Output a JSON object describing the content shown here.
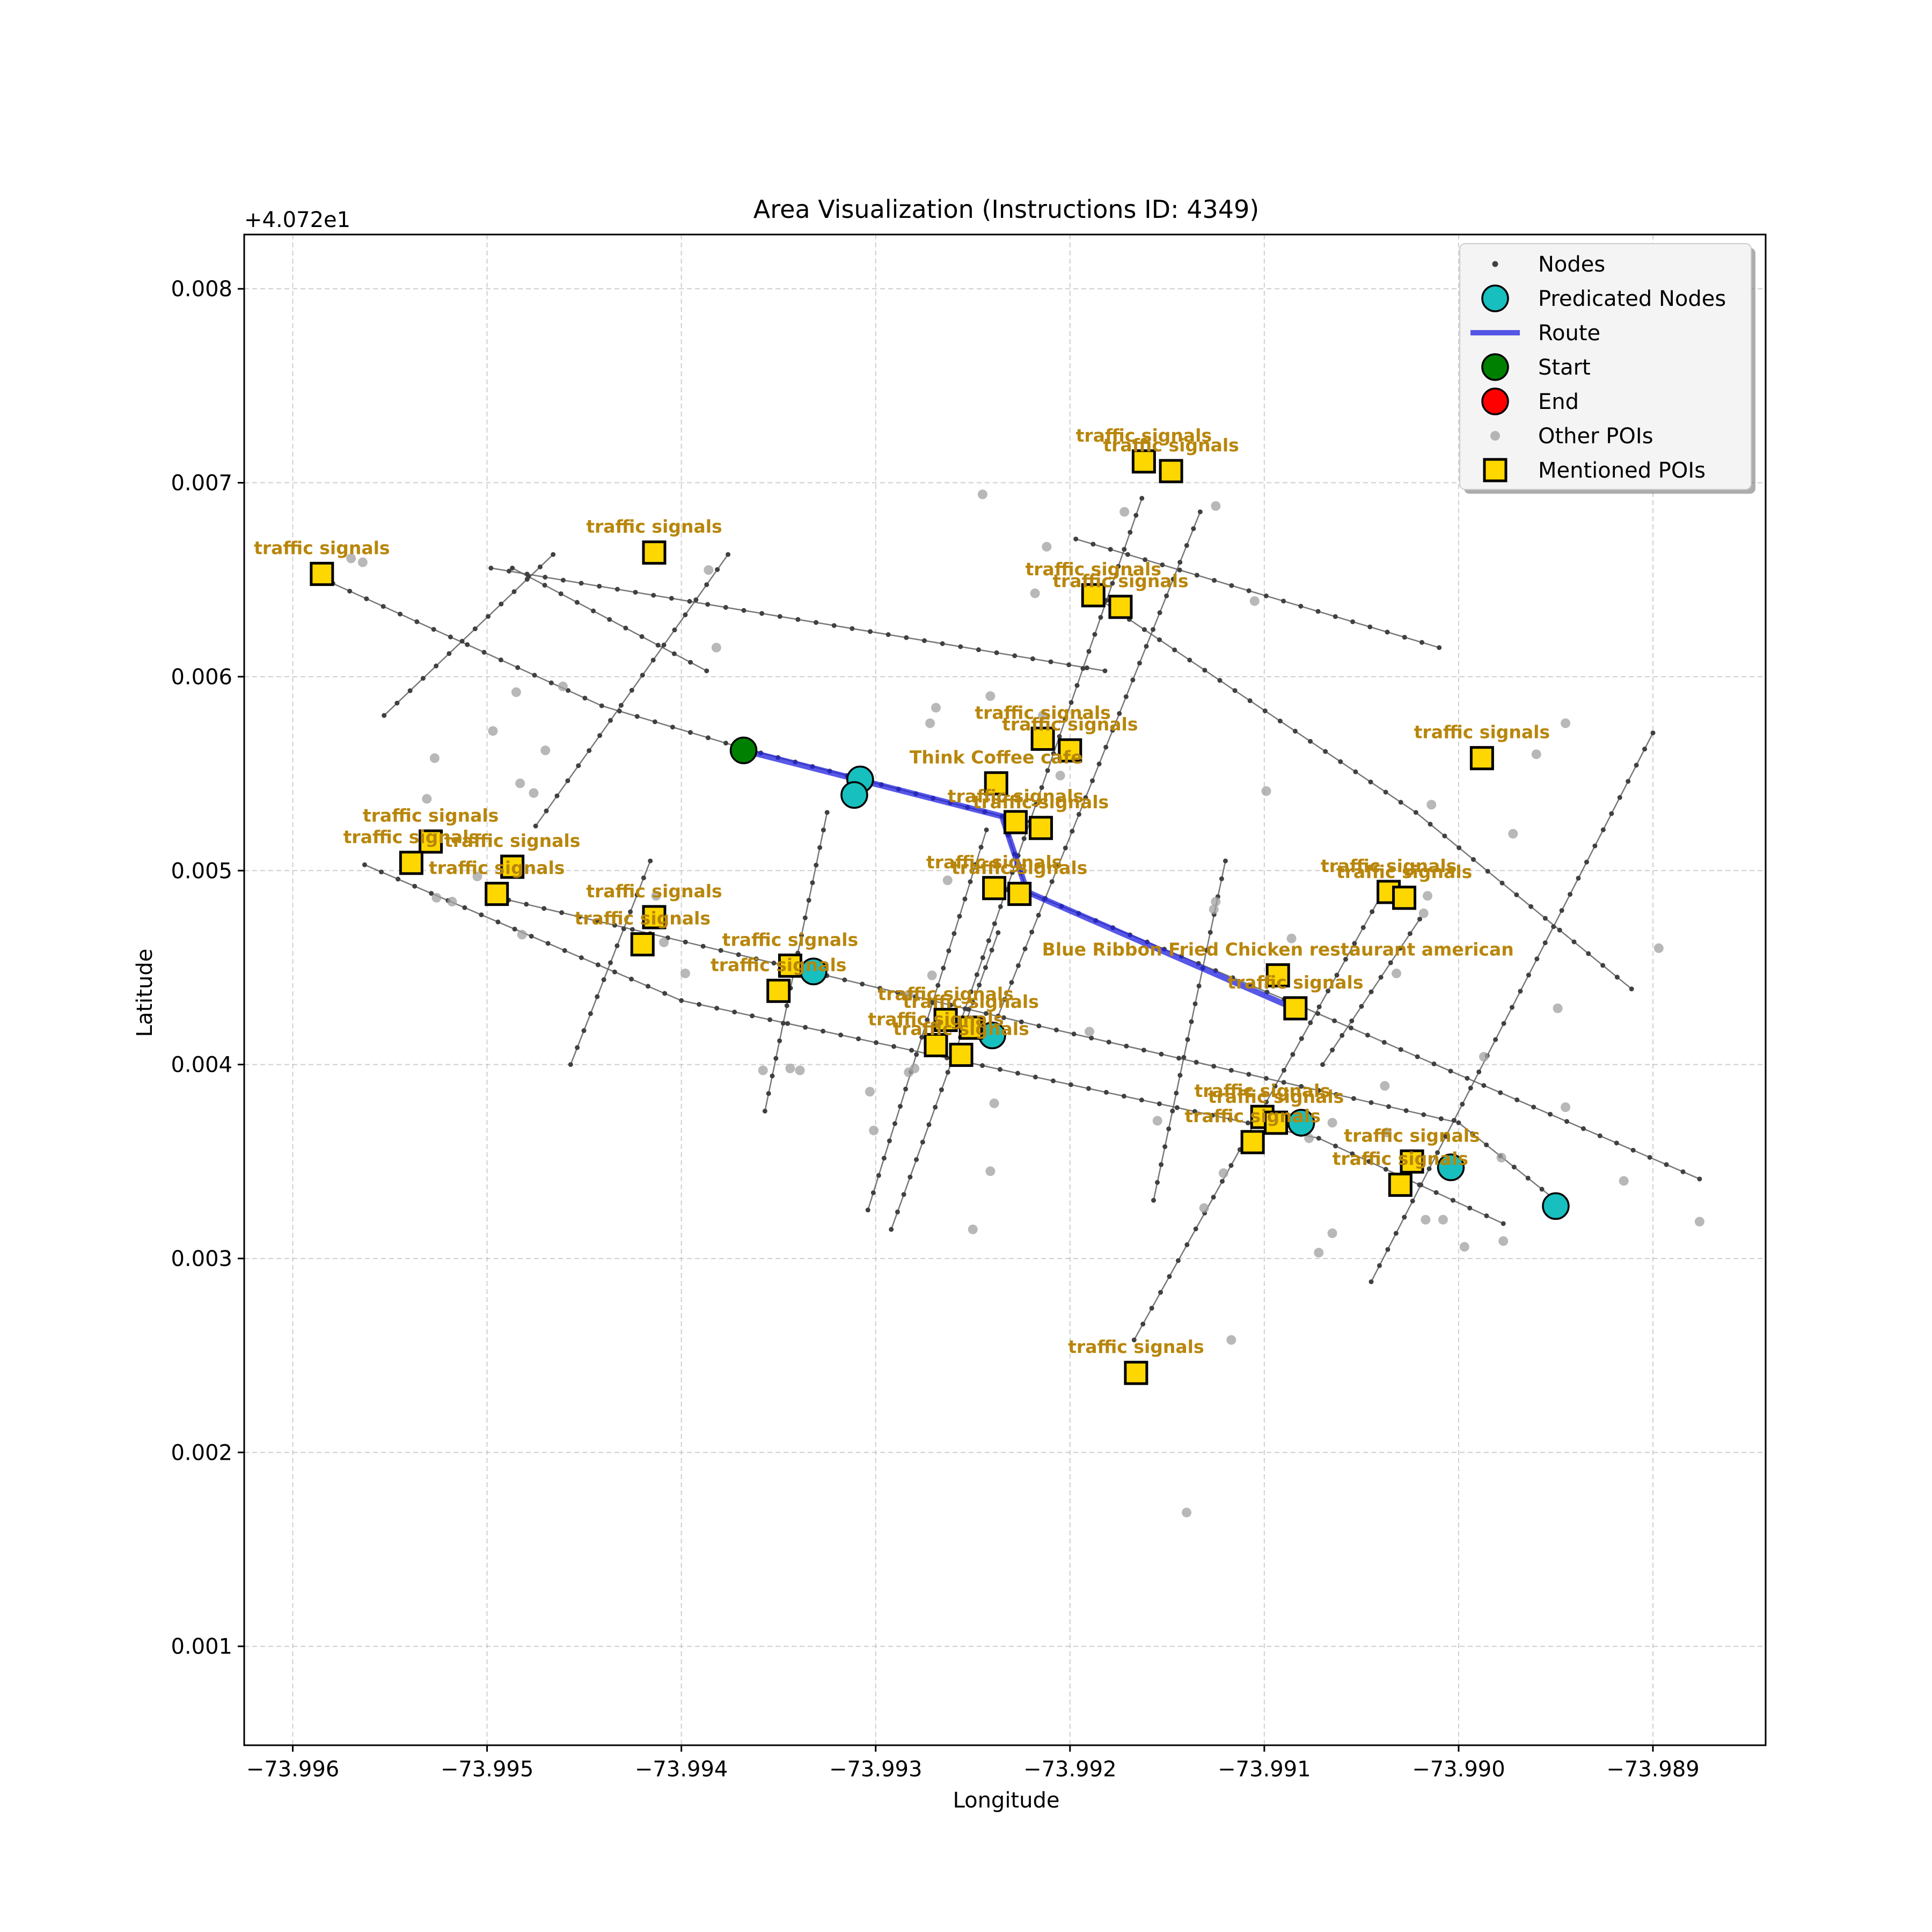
{
  "chart_data": {
    "type": "scatter",
    "title": "Area Visualization (Instructions ID: 4349)",
    "xlabel": "Longitude",
    "ylabel": "Latitude",
    "y_offset_label": "+4.072e1",
    "y_offset": 40.72,
    "xlim": [
      -73.99625,
      -73.98842
    ],
    "ylim": [
      0.00049,
      0.00828
    ],
    "x_ticks": [
      -73.996,
      -73.995,
      -73.994,
      -73.993,
      -73.992,
      -73.991,
      -73.99,
      -73.989
    ],
    "x_tick_labels": [
      "−73.996",
      "−73.995",
      "−73.994",
      "−73.993",
      "−73.992",
      "−73.991",
      "−73.990",
      "−73.989"
    ],
    "y_ticks": [
      0.001,
      0.002,
      0.003,
      0.004,
      0.005,
      0.006,
      0.007,
      0.008
    ],
    "y_tick_labels": [
      "0.001",
      "0.002",
      "0.003",
      "0.004",
      "0.005",
      "0.006",
      "0.007",
      "0.008"
    ],
    "grid": true,
    "legend_position": "upper-right",
    "legend": [
      {
        "label": "Nodes",
        "kind": "node"
      },
      {
        "label": "Predicated Nodes",
        "kind": "predicated"
      },
      {
        "label": "Route",
        "kind": "route"
      },
      {
        "label": "Start",
        "kind": "start"
      },
      {
        "label": "End",
        "kind": "end"
      },
      {
        "label": "Other POIs",
        "kind": "other"
      },
      {
        "label": "Mentioned POIs",
        "kind": "mentioned"
      }
    ],
    "colors": {
      "node": "#404040",
      "edge": "#555555",
      "predicated": "#17bfbf",
      "route": "#2020e0",
      "start": "#008000",
      "end": "#ff0000",
      "other_poi": "#a0a0a0",
      "mentioned_fill": "#ffd700",
      "mentioned_label": "#b8860b"
    },
    "streets": [
      [
        [
          -73.99588,
          0.00652
        ],
        [
          -73.99441,
          0.00585
        ],
        [
          -73.99368,
          0.00563
        ]
      ],
      [
        [
          -73.99368,
          0.00563
        ],
        [
          -73.99235,
          0.00528
        ]
      ],
      [
        [
          -73.99235,
          0.00528
        ],
        [
          -73.99222,
          0.00489
        ],
        [
          -73.99081,
          0.0043
        ],
        [
          -73.98876,
          0.00341
        ]
      ],
      [
        [
          -73.99498,
          0.00656
        ],
        [
          -73.99182,
          0.00603
        ]
      ],
      [
        [
          -73.99487,
          0.00656
        ],
        [
          -73.99387,
          0.00603
        ]
      ],
      [
        [
          -73.99185,
          0.0064
        ],
        [
          -73.99022,
          0.0053
        ],
        [
          -73.98911,
          0.00439
        ]
      ],
      [
        [
          -73.99197,
          0.00671
        ],
        [
          -73.9901,
          0.00615
        ]
      ],
      [
        [
          -73.99563,
          0.00503
        ],
        [
          -73.994,
          0.00433
        ],
        [
          -73.99072,
          0.00362
        ],
        [
          -73.98977,
          0.00318
        ]
      ],
      [
        [
          -73.99498,
          0.00487
        ],
        [
          -73.99225,
          0.00422
        ],
        [
          -73.99,
          0.0037
        ],
        [
          -73.9895,
          0.0033
        ]
      ],
      [
        [
          -73.99553,
          0.0058
        ],
        [
          -73.99466,
          0.00663
        ]
      ],
      [
        [
          -73.99475,
          0.00523
        ],
        [
          -73.99376,
          0.00663
        ]
      ],
      [
        [
          -73.99457,
          0.004
        ],
        [
          -73.99416,
          0.00505
        ]
      ],
      [
        [
          -73.99357,
          0.00376
        ],
        [
          -73.99325,
          0.0053
        ]
      ],
      [
        [
          -73.99304,
          0.00325
        ],
        [
          -73.99243,
          0.00521
        ]
      ],
      [
        [
          -73.99292,
          0.00315
        ],
        [
          -73.99237,
          0.00468
        ]
      ],
      [
        [
          -73.99257,
          0.0042
        ],
        [
          -73.99163,
          0.00692
        ]
      ],
      [
        [
          -73.99237,
          0.00425
        ],
        [
          -73.99133,
          0.00685
        ]
      ],
      [
        [
          -73.99167,
          0.00258
        ],
        [
          -73.9904,
          0.00487
        ]
      ],
      [
        [
          -73.99157,
          0.0033
        ],
        [
          -73.9912,
          0.00505
        ]
      ],
      [
        [
          -73.99045,
          0.00288
        ],
        [
          -73.989,
          0.00571
        ]
      ],
      [
        [
          -73.9907,
          0.004
        ],
        [
          -73.9902,
          0.00475
        ]
      ]
    ],
    "predicated_nodes": [
      [
        -73.99308,
        0.00547
      ],
      [
        -73.99311,
        0.00539
      ],
      [
        -73.99332,
        0.00448
      ],
      [
        -73.9924,
        0.00415
      ],
      [
        -73.99081,
        0.0037
      ],
      [
        -73.99004,
        0.00347
      ],
      [
        -73.9895,
        0.00327
      ]
    ],
    "route": [
      [
        -73.99368,
        0.00562
      ],
      [
        -73.99235,
        0.00528
      ],
      [
        -73.99222,
        0.00489
      ],
      [
        -73.99087,
        0.0043
      ]
    ],
    "start": [
      -73.99368,
      0.00562
    ],
    "other_pois": [
      [
        -73.9957,
        0.00661
      ],
      [
        -73.99564,
        0.00659
      ],
      [
        -73.99497,
        0.00572
      ],
      [
        -73.99485,
        0.00592
      ],
      [
        -73.9947,
        0.00562
      ],
      [
        -73.99461,
        0.00595
      ],
      [
        -73.99483,
        0.00545
      ],
      [
        -73.99476,
        0.0054
      ],
      [
        -73.99527,
        0.00558
      ],
      [
        -73.99531,
        0.00537
      ],
      [
        -73.99526,
        0.00486
      ],
      [
        -73.99518,
        0.00484
      ],
      [
        -73.99505,
        0.00497
      ],
      [
        -73.99482,
        0.00467
      ],
      [
        -73.99386,
        0.00655
      ],
      [
        -73.99382,
        0.00615
      ],
      [
        -73.99423,
        0.00459
      ],
      [
        -73.99409,
        0.00463
      ],
      [
        -73.99413,
        0.00487
      ],
      [
        -73.99398,
        0.00447
      ],
      [
        -73.99358,
        0.00397
      ],
      [
        -73.99344,
        0.00398
      ],
      [
        -73.99339,
        0.00397
      ],
      [
        -73.99301,
        0.00366
      ],
      [
        -73.99303,
        0.00386
      ],
      [
        -73.99283,
        0.00396
      ],
      [
        -73.9928,
        0.00398
      ],
      [
        -73.99283,
        0.00436
      ],
      [
        -73.99272,
        0.00576
      ],
      [
        -73.99263,
        0.00495
      ],
      [
        -73.99271,
        0.00446
      ],
      [
        -73.99269,
        0.00584
      ],
      [
        -73.99245,
        0.00694
      ],
      [
        -73.99241,
        0.0059
      ],
      [
        -73.99218,
        0.00643
      ],
      [
        -73.99172,
        0.00685
      ],
      [
        -73.99212,
        0.00667
      ],
      [
        -73.99214,
        0.0058
      ],
      [
        -73.99205,
        0.00549
      ],
      [
        -73.9919,
        0.00417
      ],
      [
        -73.99155,
        0.00371
      ],
      [
        -73.99125,
        0.00688
      ],
      [
        -73.99105,
        0.00639
      ],
      [
        -73.99099,
        0.00541
      ],
      [
        -73.99125,
        0.00484
      ],
      [
        -73.99126,
        0.0048
      ],
      [
        -73.99121,
        0.00344
      ],
      [
        -73.99131,
        0.00326
      ],
      [
        -73.99117,
        0.00258
      ],
      [
        -73.9914,
        0.00169
      ],
      [
        -73.99086,
        0.00465
      ],
      [
        -73.99077,
        0.00362
      ],
      [
        -73.99065,
        0.0037
      ],
      [
        -73.99072,
        0.00303
      ],
      [
        -73.99065,
        0.00313
      ],
      [
        -73.99032,
        0.00447
      ],
      [
        -73.99038,
        0.00389
      ],
      [
        -73.99037,
        0.00365
      ],
      [
        -73.99018,
        0.00478
      ],
      [
        -73.99016,
        0.00487
      ],
      [
        -73.99014,
        0.00534
      ],
      [
        -73.99017,
        0.0032
      ],
      [
        -73.99008,
        0.0032
      ],
      [
        -73.98987,
        0.00404
      ],
      [
        -73.98978,
        0.00352
      ],
      [
        -73.98997,
        0.00306
      ],
      [
        -73.98977,
        0.00309
      ],
      [
        -73.98972,
        0.00519
      ],
      [
        -73.9896,
        0.0056
      ],
      [
        -73.98945,
        0.00576
      ],
      [
        -73.98949,
        0.00429
      ],
      [
        -73.98945,
        0.00378
      ],
      [
        -73.98915,
        0.0034
      ],
      [
        -73.98897,
        0.0046
      ],
      [
        -73.98876,
        0.00319
      ],
      [
        -73.99239,
        0.0038
      ],
      [
        -73.99241,
        0.00345
      ],
      [
        -73.9925,
        0.00315
      ]
    ],
    "mentioned_pois": [
      {
        "label": "traffic signals",
        "x": -73.99585,
        "y": 0.00653
      },
      {
        "label": "traffic signals",
        "x": -73.99414,
        "y": 0.00664
      },
      {
        "label": "traffic signals",
        "x": -73.99162,
        "y": 0.00711
      },
      {
        "label": "traffic signals",
        "x": -73.99148,
        "y": 0.00706
      },
      {
        "label": "traffic signals",
        "x": -73.99188,
        "y": 0.00642
      },
      {
        "label": "traffic signals",
        "x": -73.99174,
        "y": 0.00636
      },
      {
        "label": "traffic signals",
        "x": -73.99214,
        "y": 0.00568
      },
      {
        "label": "traffic signals",
        "x": -73.992,
        "y": 0.00562
      },
      {
        "label": "Think Coffee cafe",
        "x": -73.99238,
        "y": 0.00545
      },
      {
        "label": "traffic signals",
        "x": -73.99228,
        "y": 0.00525
      },
      {
        "label": "traffic signals",
        "x": -73.99215,
        "y": 0.00522
      },
      {
        "label": "traffic signals",
        "x": -73.99239,
        "y": 0.00491
      },
      {
        "label": "traffic signals",
        "x": -73.99226,
        "y": 0.00488
      },
      {
        "label": "traffic signals",
        "x": -73.98988,
        "y": 0.00558
      },
      {
        "label": "traffic signals",
        "x": -73.99036,
        "y": 0.00489
      },
      {
        "label": "traffic signals",
        "x": -73.99028,
        "y": 0.00486
      },
      {
        "label": "traffic signals",
        "x": -73.99529,
        "y": 0.00515
      },
      {
        "label": "traffic signals",
        "x": -73.99539,
        "y": 0.00504
      },
      {
        "label": "traffic signals",
        "x": -73.99487,
        "y": 0.00502
      },
      {
        "label": "traffic signals",
        "x": -73.99495,
        "y": 0.00488
      },
      {
        "label": "traffic signals",
        "x": -73.99414,
        "y": 0.00476
      },
      {
        "label": "traffic signals",
        "x": -73.9942,
        "y": 0.00462
      },
      {
        "label": "traffic signals",
        "x": -73.99344,
        "y": 0.00451
      },
      {
        "label": "traffic signals",
        "x": -73.9935,
        "y": 0.00438
      },
      {
        "label": "Blue Ribbon Fried Chicken restaurant american",
        "x": -73.99093,
        "y": 0.00446
      },
      {
        "label": "traffic signals",
        "x": -73.99084,
        "y": 0.00429
      },
      {
        "label": "traffic signals",
        "x": -73.99264,
        "y": 0.00423
      },
      {
        "label": "traffic signals",
        "x": -73.99251,
        "y": 0.00419
      },
      {
        "label": "traffic signals",
        "x": -73.99269,
        "y": 0.0041
      },
      {
        "label": "traffic signals",
        "x": -73.99256,
        "y": 0.00405
      },
      {
        "label": "traffic signals",
        "x": -73.99101,
        "y": 0.00373
      },
      {
        "label": "traffic signals",
        "x": -73.99094,
        "y": 0.0037
      },
      {
        "label": "traffic signals",
        "x": -73.99106,
        "y": 0.0036
      },
      {
        "label": "traffic signals",
        "x": -73.99024,
        "y": 0.0035
      },
      {
        "label": "traffic signals",
        "x": -73.9903,
        "y": 0.00338
      },
      {
        "label": "traffic signals",
        "x": -73.99166,
        "y": 0.00241
      }
    ]
  }
}
